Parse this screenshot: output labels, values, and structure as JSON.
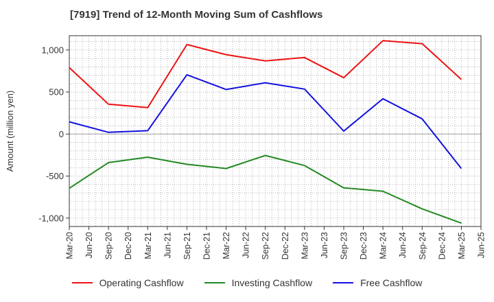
{
  "chart_data": {
    "type": "line",
    "title": "[7919]  Trend of 12-Month Moving Sum of Cashflows",
    "xlabel": "",
    "ylabel": "Amount (million yen)",
    "x": [
      "Mar-20",
      "Jun-20",
      "Sep-20",
      "Dec-20",
      "Mar-21",
      "Jun-21",
      "Sep-21",
      "Dec-21",
      "Mar-22",
      "Jun-22",
      "Sep-22",
      "Dec-22",
      "Mar-23",
      "Jun-23",
      "Sep-23",
      "Dec-23",
      "Mar-24",
      "Jun-24",
      "Sep-24",
      "Dec-24",
      "Mar-25",
      "Jun-25"
    ],
    "ylim": [
      -1100,
      1170
    ],
    "yticks": [
      -1000,
      -500,
      0,
      500,
      1000
    ],
    "ytick_labels": [
      "-1,000",
      "-500",
      "0",
      "500",
      "1,000"
    ],
    "grid": true,
    "legend_position": "bottom",
    "series": [
      {
        "name": "Operating Cashflow",
        "color": "#ee1111",
        "points": [
          [
            "Mar-20",
            790
          ],
          [
            "Sep-20",
            355
          ],
          [
            "Mar-21",
            315
          ],
          [
            "Sep-21",
            1065
          ],
          [
            "Mar-22",
            945
          ],
          [
            "Sep-22",
            870
          ],
          [
            "Mar-23",
            910
          ],
          [
            "Sep-23",
            670
          ],
          [
            "Mar-24",
            1110
          ],
          [
            "Sep-24",
            1075
          ],
          [
            "Mar-25",
            650
          ]
        ]
      },
      {
        "name": "Investing Cashflow",
        "color": "#228822",
        "points": [
          [
            "Mar-20",
            -645
          ],
          [
            "Sep-20",
            -340
          ],
          [
            "Mar-21",
            -275
          ],
          [
            "Sep-21",
            -360
          ],
          [
            "Mar-22",
            -410
          ],
          [
            "Sep-22",
            -255
          ],
          [
            "Mar-23",
            -375
          ],
          [
            "Sep-23",
            -640
          ],
          [
            "Mar-24",
            -680
          ],
          [
            "Sep-24",
            -890
          ],
          [
            "Mar-25",
            -1060
          ]
        ]
      },
      {
        "name": "Free Cashflow",
        "color": "#1111dd",
        "points": [
          [
            "Mar-20",
            145
          ],
          [
            "Sep-20",
            20
          ],
          [
            "Mar-21",
            40
          ],
          [
            "Sep-21",
            705
          ],
          [
            "Mar-22",
            530
          ],
          [
            "Sep-22",
            610
          ],
          [
            "Mar-23",
            535
          ],
          [
            "Sep-23",
            35
          ],
          [
            "Mar-24",
            420
          ],
          [
            "Sep-24",
            180
          ],
          [
            "Mar-25",
            -410
          ]
        ]
      }
    ]
  }
}
